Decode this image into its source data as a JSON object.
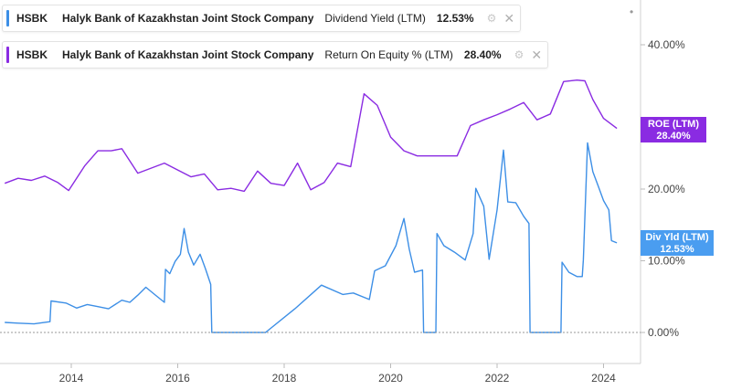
{
  "legend": [
    {
      "ticker": "HSBK",
      "company": "Halyk Bank of Kazakhstan Joint Stock Company",
      "metric": "Dividend Yield (LTM)",
      "value": "12.53%",
      "color": "#3d8fe6"
    },
    {
      "ticker": "HSBK",
      "company": "Halyk Bank of Kazakhstan Joint Stock Company",
      "metric": "Return On Equity % (LTM)",
      "value": "28.40%",
      "color": "#8a2be2"
    }
  ],
  "tags": {
    "roe": {
      "line1": "ROE (LTM)",
      "line2": "28.40%",
      "color": "#8a2be2"
    },
    "dy": {
      "line1": "Div Yld (LTM)",
      "line2": "12.53%",
      "color": "#4a9df0"
    }
  },
  "chart_data": {
    "type": "line",
    "xlabel": "",
    "ylabel": "",
    "x_ticks": [
      "2014",
      "2016",
      "2018",
      "2020",
      "2022",
      "2024"
    ],
    "y_ticks": [
      "0.00%",
      "10.00%",
      "20.00%",
      "40.00%"
    ],
    "xlim": [
      2012.75,
      2024.5
    ],
    "grid": false,
    "series": [
      {
        "name": "Return On Equity % (LTM)",
        "color": "#8a2be2",
        "points": [
          [
            2012.75,
            20.8
          ],
          [
            2013.0,
            21.5
          ],
          [
            2013.25,
            21.2
          ],
          [
            2013.5,
            21.8
          ],
          [
            2013.75,
            20.9
          ],
          [
            2013.95,
            19.8
          ],
          [
            2014.25,
            23.2
          ],
          [
            2014.5,
            25.3
          ],
          [
            2014.75,
            25.3
          ],
          [
            2014.95,
            25.6
          ],
          [
            2015.25,
            22.2
          ],
          [
            2015.75,
            23.6
          ],
          [
            2016.25,
            21.7
          ],
          [
            2016.5,
            22.1
          ],
          [
            2016.75,
            19.9
          ],
          [
            2017.0,
            20.1
          ],
          [
            2017.25,
            19.7
          ],
          [
            2017.5,
            22.5
          ],
          [
            2017.75,
            20.8
          ],
          [
            2018.0,
            20.5
          ],
          [
            2018.25,
            23.6
          ],
          [
            2018.5,
            19.9
          ],
          [
            2018.75,
            20.9
          ],
          [
            2019.0,
            23.6
          ],
          [
            2019.25,
            23.1
          ],
          [
            2019.5,
            33.2
          ],
          [
            2019.75,
            31.6
          ],
          [
            2020.0,
            27.2
          ],
          [
            2020.25,
            25.3
          ],
          [
            2020.5,
            24.6
          ],
          [
            2021.0,
            24.6
          ],
          [
            2021.25,
            24.6
          ],
          [
            2021.5,
            28.8
          ],
          [
            2021.75,
            29.6
          ],
          [
            2022.0,
            30.3
          ],
          [
            2022.25,
            31.1
          ],
          [
            2022.5,
            32.0
          ],
          [
            2022.75,
            29.6
          ],
          [
            2023.0,
            30.4
          ],
          [
            2023.25,
            34.9
          ],
          [
            2023.5,
            35.1
          ],
          [
            2023.65,
            35.0
          ],
          [
            2023.8,
            32.4
          ],
          [
            2024.0,
            29.8
          ],
          [
            2024.25,
            28.4
          ]
        ]
      },
      {
        "name": "Dividend Yield (LTM)",
        "color": "#3d8fe6",
        "points": [
          [
            2012.75,
            1.4
          ],
          [
            2013.0,
            1.3
          ],
          [
            2013.3,
            1.2
          ],
          [
            2013.6,
            1.5
          ],
          [
            2013.62,
            4.4
          ],
          [
            2013.9,
            4.1
          ],
          [
            2014.1,
            3.4
          ],
          [
            2014.3,
            3.9
          ],
          [
            2014.5,
            3.6
          ],
          [
            2014.7,
            3.3
          ],
          [
            2014.95,
            4.5
          ],
          [
            2015.1,
            4.2
          ],
          [
            2015.25,
            5.2
          ],
          [
            2015.4,
            6.3
          ],
          [
            2015.6,
            5.1
          ],
          [
            2015.75,
            4.2
          ],
          [
            2015.77,
            8.8
          ],
          [
            2015.85,
            8.2
          ],
          [
            2015.95,
            9.9
          ],
          [
            2016.05,
            10.9
          ],
          [
            2016.12,
            14.5
          ],
          [
            2016.2,
            11.2
          ],
          [
            2016.3,
            9.4
          ],
          [
            2016.42,
            10.9
          ],
          [
            2016.52,
            8.9
          ],
          [
            2016.62,
            6.7
          ],
          [
            2016.64,
            0.0
          ],
          [
            2017.0,
            0.0
          ],
          [
            2017.3,
            0.0
          ],
          [
            2017.65,
            0.0
          ],
          [
            2018.2,
            3.3
          ],
          [
            2018.7,
            6.6
          ],
          [
            2019.1,
            5.3
          ],
          [
            2019.3,
            5.5
          ],
          [
            2019.6,
            4.6
          ],
          [
            2019.7,
            8.6
          ],
          [
            2019.9,
            9.3
          ],
          [
            2020.1,
            12.1
          ],
          [
            2020.25,
            15.9
          ],
          [
            2020.35,
            11.6
          ],
          [
            2020.45,
            8.4
          ],
          [
            2020.6,
            8.7
          ],
          [
            2020.62,
            0.0
          ],
          [
            2020.85,
            0.0
          ],
          [
            2020.87,
            13.8
          ],
          [
            2021.0,
            12.1
          ],
          [
            2021.2,
            11.2
          ],
          [
            2021.4,
            10.1
          ],
          [
            2021.55,
            13.8
          ],
          [
            2021.6,
            20.1
          ],
          [
            2021.75,
            17.6
          ],
          [
            2021.85,
            10.2
          ],
          [
            2022.0,
            17.1
          ],
          [
            2022.12,
            25.4
          ],
          [
            2022.2,
            18.2
          ],
          [
            2022.35,
            18.1
          ],
          [
            2022.5,
            16.2
          ],
          [
            2022.6,
            15.2
          ],
          [
            2022.62,
            0.0
          ],
          [
            2022.9,
            0.0
          ],
          [
            2023.2,
            0.0
          ],
          [
            2023.22,
            9.8
          ],
          [
            2023.35,
            8.4
          ],
          [
            2023.5,
            7.8
          ],
          [
            2023.6,
            7.8
          ],
          [
            2023.62,
            10.1
          ],
          [
            2023.7,
            26.4
          ],
          [
            2023.8,
            22.4
          ],
          [
            2023.9,
            20.4
          ],
          [
            2024.0,
            18.4
          ],
          [
            2024.1,
            17.1
          ],
          [
            2024.15,
            12.8
          ],
          [
            2024.25,
            12.5
          ]
        ]
      }
    ]
  }
}
